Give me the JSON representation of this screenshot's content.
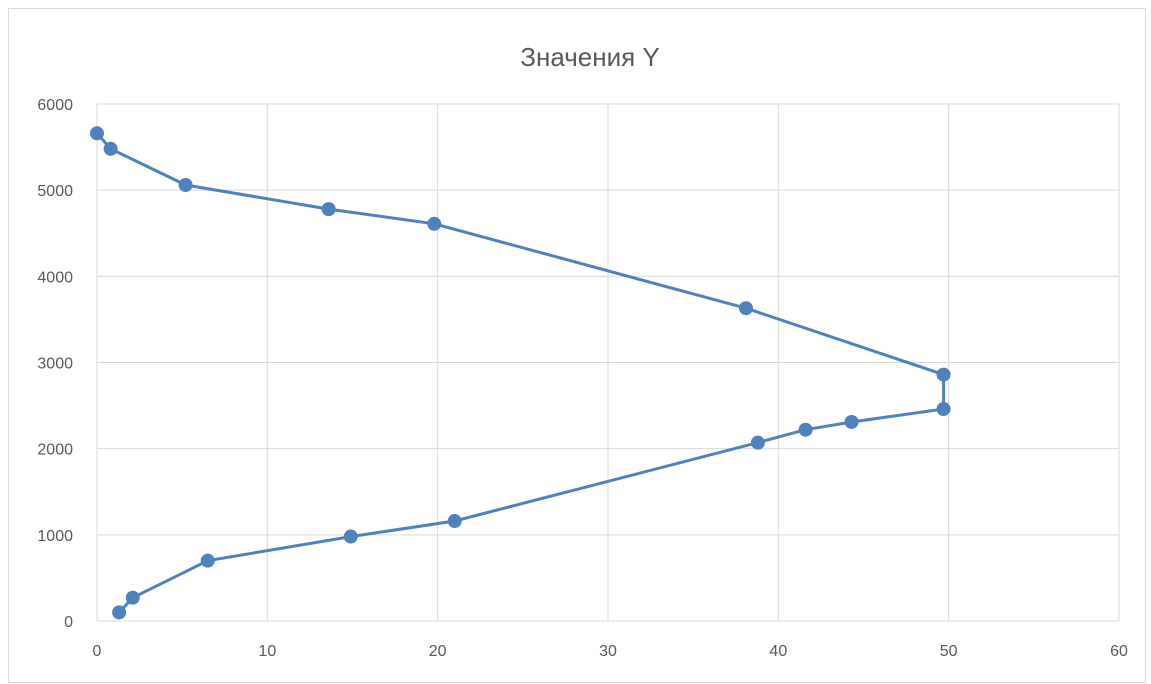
{
  "colors": {
    "series": "#4F81BD",
    "gridline": "#d9d9d9",
    "axis_text": "#595959",
    "background": "#ffffff"
  },
  "chart_data": {
    "type": "scatter",
    "title": "Значения Y",
    "xlabel": "",
    "ylabel": "",
    "xlim": [
      0,
      60
    ],
    "ylim": [
      0,
      6000
    ],
    "x_ticks": [
      0,
      10,
      20,
      30,
      40,
      50,
      60
    ],
    "y_ticks": [
      0,
      1000,
      2000,
      3000,
      4000,
      5000,
      6000
    ],
    "x_tick_labels": [
      "0",
      "10",
      "20",
      "30",
      "40",
      "50",
      "60"
    ],
    "y_tick_labels": [
      "0",
      "1000",
      "2000",
      "3000",
      "4000",
      "5000",
      "6000"
    ],
    "grid": true,
    "legend": "none",
    "markers": true,
    "lines": true,
    "series": [
      {
        "x": [
          1.3,
          2.1,
          6.5,
          14.9,
          21.0,
          38.8,
          41.6,
          44.3,
          49.7,
          49.7,
          38.1,
          19.8,
          13.6,
          5.2,
          0.8,
          0.0
        ],
        "y": [
          100,
          270,
          700,
          980,
          1160,
          2070,
          2220,
          2310,
          2460,
          2860,
          3630,
          4610,
          4780,
          5060,
          5480,
          5660
        ]
      }
    ]
  }
}
